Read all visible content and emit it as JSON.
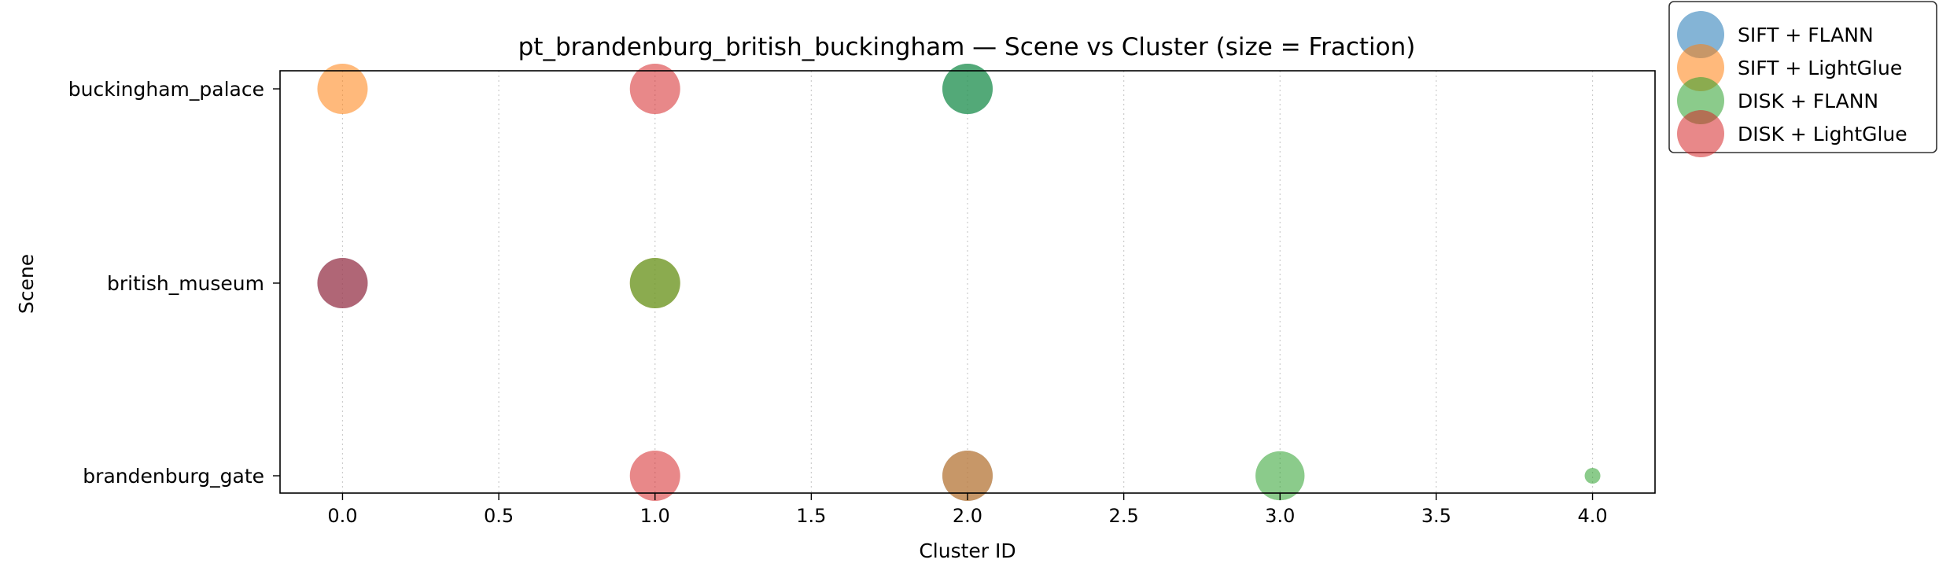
{
  "chart_data": {
    "type": "scatter",
    "title": "pt_brandenburg_british_buckingham — Scene vs Cluster (size = Fraction)",
    "xlabel": "Cluster ID",
    "ylabel": "Scene",
    "xlim": [
      -0.2,
      4.2
    ],
    "xticks": [
      0.0,
      0.5,
      1.0,
      1.5,
      2.0,
      2.5,
      3.0,
      3.5,
      4.0
    ],
    "xtick_labels": [
      "0.0",
      "0.5",
      "1.0",
      "1.5",
      "2.0",
      "2.5",
      "3.0",
      "3.5",
      "4.0"
    ],
    "categories": [
      "brandenburg_gate",
      "british_museum",
      "buckingham_palace"
    ],
    "grid": "x-dotted",
    "legend_position": "outside-top-right",
    "series": [
      {
        "name": "SIFT + FLANN",
        "color": "#1f77b4",
        "points": [
          {
            "x": 2,
            "y": "buckingham_palace",
            "size": 1.0
          },
          {
            "x": 0,
            "y": "british_museum",
            "size": 1.0
          },
          {
            "x": 2,
            "y": "brandenburg_gate",
            "size": 1.0
          }
        ]
      },
      {
        "name": "SIFT + LightGlue",
        "color": "#ff7f0e",
        "points": [
          {
            "x": 0,
            "y": "buckingham_palace",
            "size": 1.0
          },
          {
            "x": 1,
            "y": "british_museum",
            "size": 1.0
          },
          {
            "x": 2,
            "y": "brandenburg_gate",
            "size": 1.0
          }
        ]
      },
      {
        "name": "DISK + FLANN",
        "color": "#2ca02c",
        "points": [
          {
            "x": 2,
            "y": "buckingham_palace",
            "size": 1.0
          },
          {
            "x": 1,
            "y": "british_museum",
            "size": 1.0
          },
          {
            "x": 3,
            "y": "brandenburg_gate",
            "size": 0.95
          },
          {
            "x": 4,
            "y": "brandenburg_gate",
            "size": 0.05
          }
        ]
      },
      {
        "name": "DISK + LightGlue",
        "color": "#d62728",
        "points": [
          {
            "x": 1,
            "y": "buckingham_palace",
            "size": 1.0
          },
          {
            "x": 0,
            "y": "british_museum",
            "size": 1.0
          },
          {
            "x": 1,
            "y": "brandenburg_gate",
            "size": 1.0
          }
        ]
      }
    ]
  }
}
